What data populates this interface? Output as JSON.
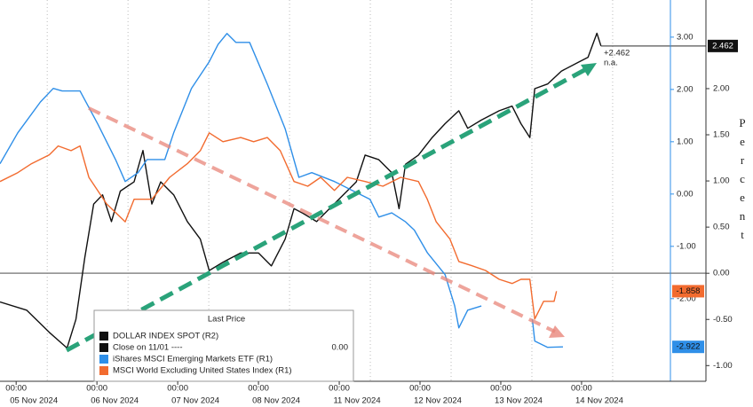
{
  "chart_data": {
    "type": "line",
    "xlim": [
      -0.2,
      8.1
    ],
    "xticks": [
      {
        "value": 0,
        "label": "00:00"
      },
      {
        "value": 1,
        "label": "00:00"
      },
      {
        "value": 2,
        "label": "00:00"
      },
      {
        "value": 3,
        "label": "00:00"
      },
      {
        "value": 4,
        "label": "00:00"
      },
      {
        "value": 5,
        "label": "00:00"
      },
      {
        "value": 6,
        "label": "00:00"
      },
      {
        "value": 7,
        "label": "00:00"
      }
    ],
    "xtick_dates": [
      "05 Nov 2024",
      "06 Nov 2024",
      "07 Nov 2024",
      "08 Nov 2024",
      "11 Nov 2024",
      "12 Nov 2024",
      "13 Nov 2024",
      "14 Nov 2024"
    ],
    "ylim": [
      -3.58,
      3.71
    ],
    "yticks": [
      {
        "value": 3,
        "label": "3.00"
      },
      {
        "value": 2,
        "label": "2.00"
      },
      {
        "value": 1,
        "label": "1.00"
      },
      {
        "value": 0,
        "label": "0.00"
      },
      {
        "value": -1,
        "label": "-1.00"
      },
      {
        "value": -2,
        "label": "-2.00"
      }
    ],
    "y2lim": [
      -1.17,
      2.96
    ],
    "y2ticks": [
      {
        "value": 2,
        "label": "2.00"
      },
      {
        "value": 1.5,
        "label": "1.50"
      },
      {
        "value": 1,
        "label": "1.00"
      },
      {
        "value": 0.5,
        "label": "0.50"
      },
      {
        "value": 0,
        "label": "0.00"
      },
      {
        "value": -0.5,
        "label": "-0.50"
      },
      {
        "value": -1,
        "label": "-1.00"
      }
    ],
    "y2label": "Percent",
    "legend_title": "Last Price",
    "reference_line": {
      "name": "Close on 11/01 ----",
      "value": 0,
      "value_label": "0.00",
      "color": "#888888"
    },
    "annotations": [
      "+2.462",
      "n.a."
    ],
    "series": [
      {
        "name": "DOLLAR INDEX SPOT (R2)",
        "color": "#111111",
        "axis": "y2",
        "last_value_label": "2.462",
        "x": [
          -0.2,
          0.13,
          0.41,
          0.63,
          0.74,
          0.85,
          0.96,
          1.07,
          1.18,
          1.29,
          1.46,
          1.57,
          1.68,
          1.79,
          1.95,
          2.12,
          2.28,
          2.39,
          2.56,
          2.78,
          3.0,
          3.16,
          3.33,
          3.44,
          3.55,
          3.72,
          3.88,
          4.05,
          4.21,
          4.32,
          4.49,
          4.65,
          4.74,
          4.82,
          4.98,
          5.15,
          5.31,
          5.48,
          5.59,
          5.76,
          5.98,
          6.14,
          6.25,
          6.36,
          6.42,
          6.58,
          6.75,
          6.97,
          7.08,
          7.19,
          7.24
        ],
        "values": [
          -0.31,
          -0.4,
          -0.64,
          -0.81,
          -0.5,
          0.17,
          0.75,
          0.85,
          0.56,
          0.89,
          0.99,
          1.33,
          0.75,
          0.99,
          0.85,
          0.56,
          0.37,
          0.03,
          0.12,
          0.22,
          0.22,
          0.08,
          0.37,
          0.7,
          0.65,
          0.56,
          0.7,
          0.85,
          0.99,
          1.28,
          1.23,
          1.09,
          0.7,
          1.18,
          1.28,
          1.47,
          1.62,
          1.76,
          1.57,
          1.66,
          1.76,
          1.81,
          1.62,
          1.47,
          2.0,
          2.05,
          2.19,
          2.29,
          2.34,
          2.6,
          2.462
        ]
      },
      {
        "name": "iShares MSCI Emerging Markets ETF  (R1)",
        "color": "#2f8fe8",
        "last_value_label": "-2.922",
        "x": [
          -0.2,
          0.02,
          0.3,
          0.46,
          0.57,
          0.79,
          1.01,
          1.23,
          1.35,
          1.51,
          1.62,
          1.84,
          1.95,
          2.17,
          2.39,
          2.5,
          2.61,
          2.72,
          2.89,
          3.11,
          3.33,
          3.5,
          3.66,
          3.94,
          4.16,
          4.38,
          4.49,
          4.65,
          4.82,
          4.93,
          5.09,
          5.31,
          5.43,
          5.48,
          5.59,
          5.76,
          6.0,
          6.39,
          6.42,
          6.58,
          6.77
        ],
        "values": [
          0.58,
          1.17,
          1.76,
          2.02,
          1.97,
          1.97,
          1.34,
          0.66,
          0.24,
          0.41,
          0.66,
          0.66,
          1.17,
          2.02,
          2.53,
          2.86,
          3.07,
          2.9,
          2.9,
          2.1,
          1.25,
          0.32,
          0.41,
          0.24,
          0.07,
          -0.1,
          -0.44,
          -0.36,
          -0.53,
          -0.69,
          -1.12,
          -1.54,
          -2.14,
          -2.56,
          -2.22,
          -2.14,
          null,
          -2.39,
          -2.81,
          -2.93,
          -2.922
        ]
      },
      {
        "name": "MSCI World Excluding United States Index  (R1)",
        "color": "#f26b2f",
        "last_value_label": "-1.858",
        "x": [
          -0.2,
          0.02,
          0.19,
          0.41,
          0.52,
          0.68,
          0.79,
          0.9,
          1.12,
          1.35,
          1.46,
          1.68,
          1.9,
          2.12,
          2.28,
          2.39,
          2.56,
          2.78,
          2.94,
          3.11,
          3.27,
          3.44,
          3.61,
          3.77,
          3.94,
          4.1,
          4.32,
          4.54,
          4.76,
          4.98,
          5.09,
          5.2,
          5.37,
          5.48,
          5.64,
          5.81,
          5.98,
          6.14,
          6.25,
          6.36,
          6.42,
          6.53,
          6.66,
          6.69
        ],
        "values": [
          0.24,
          0.41,
          0.58,
          0.75,
          0.92,
          0.83,
          0.92,
          0.32,
          -0.19,
          -0.53,
          -0.1,
          -0.1,
          0.32,
          0.58,
          0.83,
          1.17,
          1.0,
          1.08,
          1.0,
          1.08,
          0.83,
          0.24,
          0.15,
          0.32,
          0.07,
          0.32,
          0.24,
          0.15,
          0.32,
          0.24,
          -0.1,
          -0.53,
          -0.86,
          -1.29,
          -1.37,
          -1.46,
          -1.63,
          -1.71,
          -1.63,
          -1.63,
          -2.39,
          -2.05,
          -2.05,
          -1.858
        ]
      }
    ]
  }
}
